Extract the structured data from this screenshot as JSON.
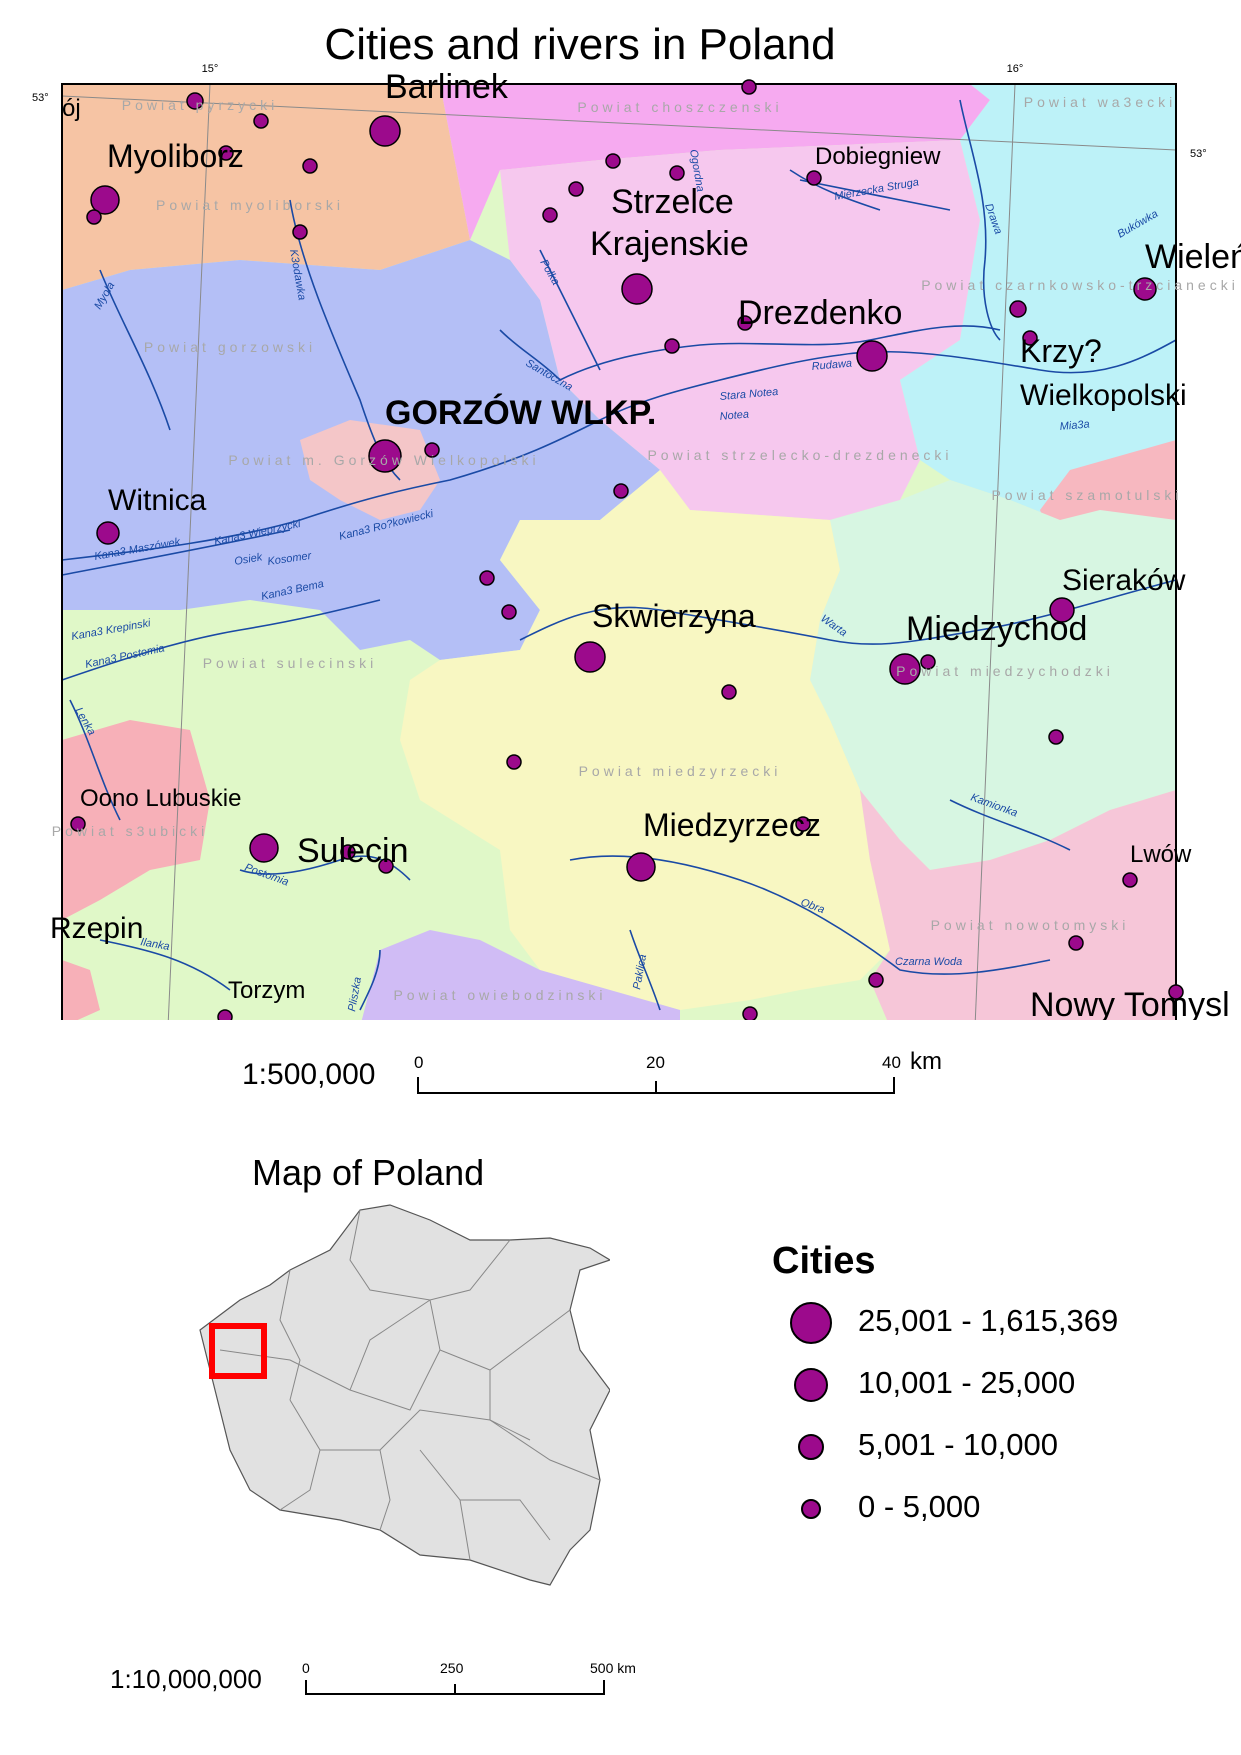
{
  "title": "Cities and rivers in Poland",
  "graticule": {
    "lon_a": "15°",
    "lon_b": "16°",
    "lat": "53°"
  },
  "main_map": {
    "scale_ratio": "1:500,000",
    "scale_ticks": [
      "0",
      "20",
      "40"
    ],
    "scale_unit": "km",
    "district_labels": [
      "Powiat pyrzycki",
      "Powiat choszczenski",
      "Powiat wa3ecki",
      "Powiat myoliborski",
      "Powiat gorzowski",
      "Powiat czarnkowsko-trzcianecki",
      "Powiat strzelecko-drezdenecki",
      "Powiat m. Gorzów Wielkopolski",
      "Powiat szamotulski",
      "Powiat sulecinski",
      "Powiat miedzyrzecki",
      "Powiat miedzychodzki",
      "Powiat s3ubicki",
      "Powiat nowotomyski",
      "Powiat owiebodzinski"
    ],
    "city_labels": [
      "Barlinek",
      "Myoliborz",
      "Dobiegniew",
      "Strzelce",
      "Krajenskie",
      "Drezdenko",
      "Krzy?",
      "Wielkopolski",
      "GORZÓW WLKP.",
      "Witnica",
      "Skwierzyna",
      "Miedzychod",
      "Sieraków",
      "Oono Lubuskie",
      "Sulecin",
      "Miedzyrzecz",
      "Lwów",
      "Rzepin",
      "Torzym",
      "Nowy Tomysl",
      "Wieleń",
      "ój"
    ],
    "river_labels": [
      "Kana3 Maszówek",
      "Kana3 Wieprzycki",
      "Kana3 Bema",
      "Kana3 Krepinski",
      "Kana3 Postomia",
      "Kosomer",
      "Kana3 Ro?kowiecki",
      "Santoczna",
      "Polka",
      "Stara Notea",
      "Notea",
      "Rudawa",
      "Mierzecka Struga",
      "Drawa",
      "Bukówka",
      "Mia3a",
      "Warta",
      "Kamionka",
      "Obra",
      "Czarna Woda",
      "Paklica",
      "Pliszka",
      "Ilanka",
      "Postomia",
      "Lenka",
      "K3odawka",
      "Myola",
      "Osiek",
      "Ogordna"
    ]
  },
  "inset_map": {
    "title": "Map of Poland",
    "scale_ratio": "1:10,000,000",
    "scale_ticks": [
      "0",
      "250",
      "500 km"
    ],
    "highlight_color": "#ff0000"
  },
  "legend": {
    "title": "Cities",
    "classes": [
      {
        "label": "25,001 - 1,615,369",
        "size": "large"
      },
      {
        "label": "10,001 - 25,000",
        "size": "medium"
      },
      {
        "label": "5,001 - 10,000",
        "size": "small"
      },
      {
        "label": "0 - 5,000",
        "size": "tiny"
      }
    ]
  },
  "colors": {
    "city_symbol": "#9c0a8c",
    "river": "#1a4aa5",
    "region_peach": "#f6c4a4",
    "region_pink": "#f6c6ee",
    "region_cyan": "#bdf2f8",
    "region_blue": "#b4bff6",
    "region_yellow": "#f8f7c2",
    "region_lightgreen": "#e0f8c8",
    "region_mint": "#d7f6e2",
    "region_rose": "#f7b0b8",
    "region_lavender": "#d0bcf5",
    "inset_fill": "#e1e1e1"
  }
}
